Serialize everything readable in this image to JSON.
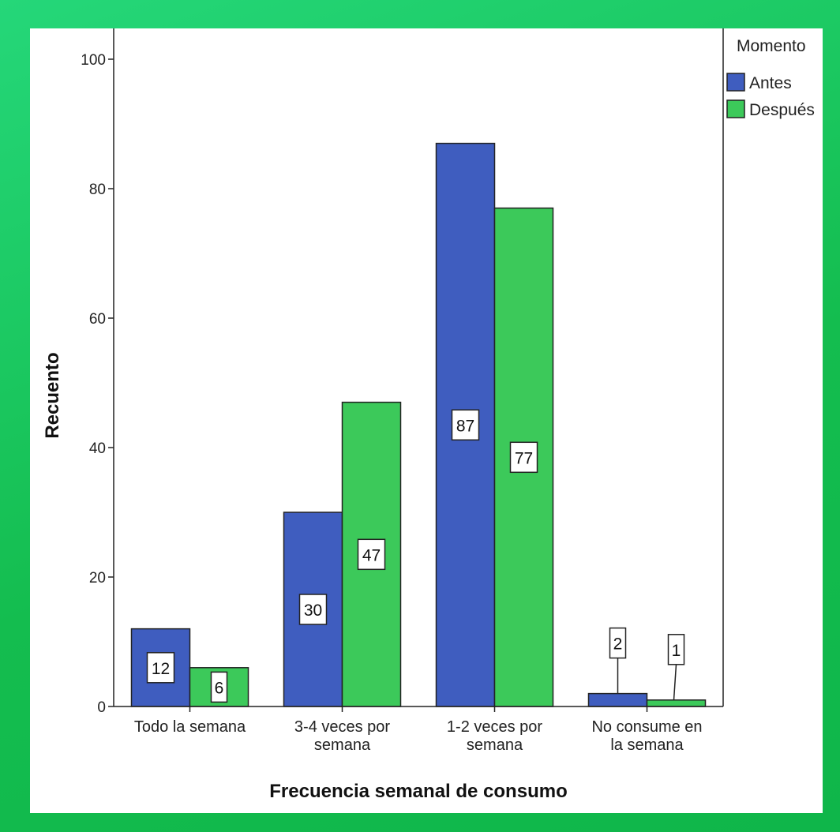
{
  "chart_data": {
    "type": "bar",
    "title": "",
    "xlabel": "Frecuencia semanal de consumo",
    "ylabel": "Recuento",
    "ylim": [
      0,
      100
    ],
    "yticks": [
      "0",
      "20",
      "40",
      "60",
      "80",
      "100"
    ],
    "categories": [
      [
        "Todo la semana"
      ],
      [
        "3-4 veces por",
        "semana"
      ],
      [
        "1-2 veces por",
        "semana"
      ],
      [
        "No consume en",
        "la semana"
      ]
    ],
    "legend_title": "Momento",
    "legend_position": "top-right",
    "grid": false,
    "series": [
      {
        "name": "Antes",
        "color": "#3f5dbf",
        "values": [
          12,
          30,
          87,
          2
        ],
        "labels": [
          "12",
          "30",
          "87",
          "2"
        ]
      },
      {
        "name": "Después",
        "color": "#3cc95a",
        "values": [
          6,
          47,
          77,
          1
        ],
        "labels": [
          "6",
          "47",
          "77",
          "1"
        ]
      }
    ]
  },
  "colors": {
    "frame": "#16c253",
    "panel": "#ffffff",
    "bar_stroke": "#222222"
  }
}
